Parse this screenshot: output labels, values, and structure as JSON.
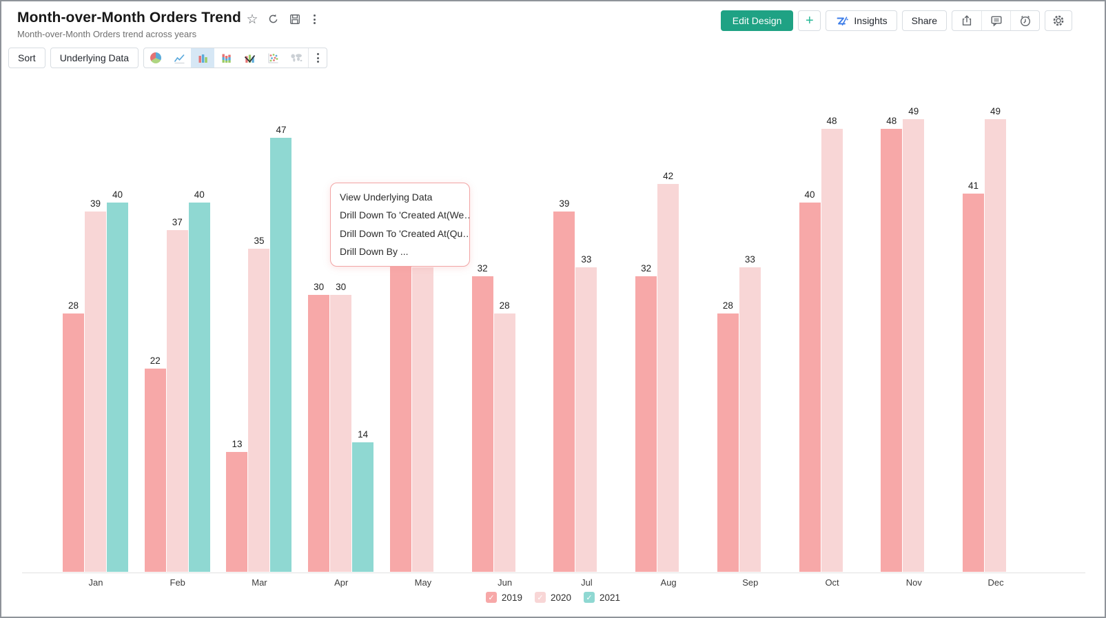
{
  "window": {
    "title": "Month-over-Month Orders Trend",
    "subtitle": "Month-over-Month Orders trend across years"
  },
  "title_icons": [
    "favorite-star-icon",
    "refresh-icon",
    "save-icon",
    "more-vertical-icon"
  ],
  "header_actions": {
    "edit_design": "Edit Design",
    "add": "+",
    "insights": "Insights",
    "share": "Share",
    "icon_buttons": [
      "export-icon",
      "comment-icon",
      "alarm-icon",
      "settings-gear-icon"
    ]
  },
  "colors": {
    "primary_button": "#1fa284",
    "accent_plus": "#26b896",
    "zia_logo_blue": "#3c7ce8",
    "selected_chart_type_bg": "#d6e7f5",
    "menu_border_pink": "#f2a4a4",
    "series_2019": "#f7a8a8",
    "series_2020": "#f8d6d6",
    "series_2021": "#8fd8d2"
  },
  "toolbar": {
    "sort": "Sort",
    "underlying_data": "Underlying Data",
    "chart_types": [
      "pie",
      "line",
      "bar",
      "stacked-bar",
      "combo",
      "scatter",
      "map"
    ],
    "selected_chart_type": "bar"
  },
  "context_menu": {
    "items": [
      "View Underlying Data",
      "Drill Down To 'Created At(We…",
      "Drill Down To 'Created At(Qu…",
      "Drill Down By ..."
    ],
    "anchored_to": "bar-2019-May"
  },
  "chart_data": {
    "type": "bar",
    "title": "Month-over-Month Orders Trend",
    "categories": [
      "Jan",
      "Feb",
      "Mar",
      "Apr",
      "May",
      "Jun",
      "Jul",
      "Aug",
      "Sep",
      "Oct",
      "Nov",
      "Dec"
    ],
    "series": [
      {
        "name": "2019",
        "color": "#f7a8a8",
        "values": [
          28,
          22,
          13,
          30,
          34,
          32,
          39,
          32,
          28,
          40,
          48,
          41
        ]
      },
      {
        "name": "2020",
        "color": "#f8d6d6",
        "values": [
          39,
          37,
          35,
          30,
          33,
          28,
          33,
          42,
          33,
          48,
          49,
          49
        ]
      },
      {
        "name": "2021",
        "color": "#8fd8d2",
        "values": [
          40,
          40,
          47,
          14,
          null,
          null,
          null,
          null,
          null,
          null,
          null,
          null
        ]
      }
    ],
    "value_labels": true,
    "value_labels_hidden_for": [
      "May"
    ],
    "xlabel": "",
    "ylabel": "",
    "ylim": [
      0,
      49
    ],
    "y_axis_visible": false,
    "grid": false,
    "legend_position": "bottom"
  }
}
